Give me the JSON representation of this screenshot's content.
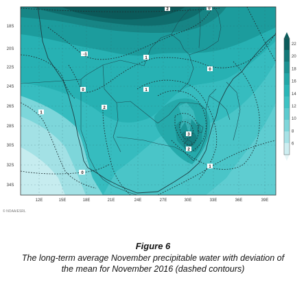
{
  "map": {
    "lat_labels": [
      "18S",
      "20S",
      "22S",
      "24S",
      "26S",
      "28S",
      "30S",
      "32S",
      "34S"
    ],
    "lon_labels": [
      "12E",
      "15E",
      "18E",
      "21E",
      "24E",
      "27E",
      "30E",
      "33E",
      "36E",
      "39E"
    ],
    "contour_labels": [
      "2",
      "-1",
      "-1",
      "1",
      "0",
      "0",
      "1",
      "2",
      "3",
      "2",
      "1",
      "1",
      "0",
      "0",
      "0"
    ],
    "colorbar_ticks": [
      "22",
      "20",
      "18",
      "16",
      "14",
      "12",
      "10",
      "8",
      "6"
    ],
    "colorbar_colors": [
      "#0b5b5b",
      "#137878",
      "#1a9191",
      "#22a7a7",
      "#2ab6b7",
      "#3ec2c3",
      "#5ccbcf",
      "#7fd6da",
      "#a6e2e6",
      "#cdeef1"
    ],
    "credit": "© NOAA/ESRL"
  },
  "caption": {
    "title": "Figure 6",
    "line1": "The long-term average November precipitable water with deviation of",
    "line2": "the mean for November 2016 (dashed contours)"
  }
}
